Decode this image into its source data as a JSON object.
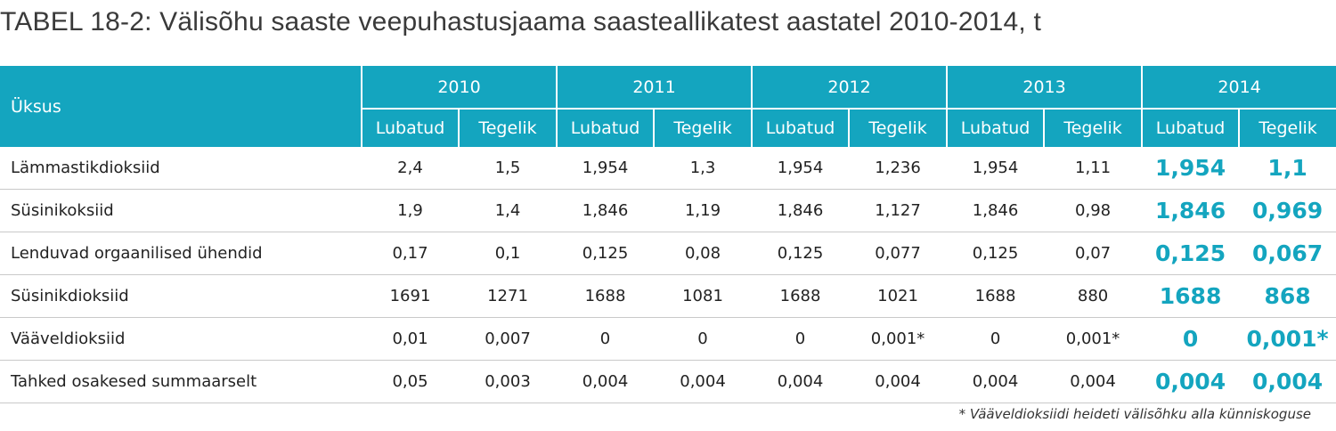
{
  "title": "TABEL 18-2: Välisõhu saaste veepuhastusjaama saasteallikatest aastatel 2010-2014, t",
  "header": {
    "unit_label": "Üksus",
    "years": [
      "2010",
      "2011",
      "2012",
      "2013",
      "2014"
    ],
    "sub": [
      "Lubatud",
      "Tegelik"
    ]
  },
  "rows": [
    {
      "label": "Lämmastikdioksiid",
      "values": [
        "2,4",
        "1,5",
        "1,954",
        "1,3",
        "1,954",
        "1,236",
        "1,954",
        "1,11",
        "1,954",
        "1,1"
      ]
    },
    {
      "label": "Süsinikoksiid",
      "values": [
        "1,9",
        "1,4",
        "1,846",
        "1,19",
        "1,846",
        "1,127",
        "1,846",
        "0,98",
        "1,846",
        "0,969"
      ]
    },
    {
      "label": "Lenduvad orgaanilised ühendid",
      "values": [
        "0,17",
        "0,1",
        "0,125",
        "0,08",
        "0,125",
        "0,077",
        "0,125",
        "0,07",
        "0,125",
        "0,067"
      ]
    },
    {
      "label": "Süsinikdioksiid",
      "values": [
        "1691",
        "1271",
        "1688",
        "1081",
        "1688",
        "1021",
        "1688",
        "880",
        "1688",
        "868"
      ]
    },
    {
      "label": "Vääveldioksiid",
      "values": [
        "0,01",
        "0,007",
        "0",
        "0",
        "0",
        "0,001*",
        "0",
        "0,001*",
        "0",
        "0,001*"
      ]
    },
    {
      "label": "Tahked osakesed summaarselt",
      "values": [
        "0,05",
        "0,003",
        "0,004",
        "0,004",
        "0,004",
        "0,004",
        "0,004",
        "0,004",
        "0,004",
        "0,004"
      ]
    }
  ],
  "footnote": "* Vääveldioksiidi heideti välisõhku alla künniskoguse",
  "colors": {
    "header_bg": "#14a5bf",
    "highlight_text": "#14a5bf"
  }
}
